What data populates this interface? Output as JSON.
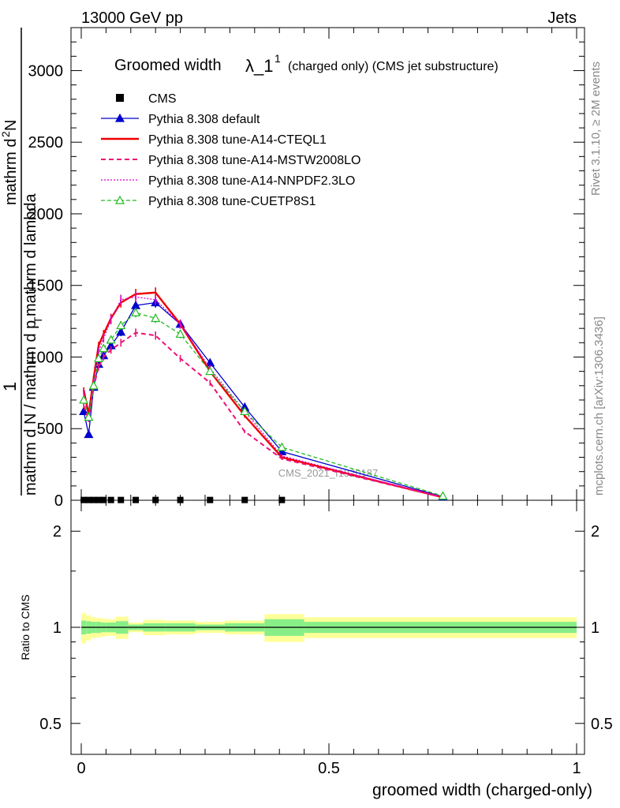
{
  "header": {
    "left": "13000 GeV pp",
    "right": "Jets"
  },
  "side_labels": {
    "rivet": "Rivet 3.1.10, ≥ 2M events",
    "mcplots": "mcplots.cern.ch [arXiv:1306.3436]"
  },
  "watermark": "CMS_2021_I1920187",
  "chart_data": [
    {
      "type": "line",
      "panel": "main",
      "title_main": "Groomed width",
      "title_lambda": "λ_1",
      "title_sup": "1",
      "title_rest": "(charged only) (CMS jet substructure)",
      "ylabel": {
        "prefix": "1",
        "top": "mathrm d",
        "sup": "2",
        "top_end": "N",
        "bottom": "mathrm d N / mathrm d p",
        "bottom_sub": "T",
        "bottom_end": " mathrm d lambda"
      },
      "xlim": [
        0,
        1
      ],
      "ylim": [
        0,
        3300
      ],
      "yticks": [
        0,
        500,
        1000,
        1500,
        2000,
        2500,
        3000
      ],
      "ytick_labels": [
        "0",
        "500",
        "1000",
        "1500",
        "2000",
        "2500",
        "3000"
      ],
      "data_points_x": [
        0.005,
        0.015,
        0.025,
        0.035,
        0.045,
        0.06,
        0.08,
        0.11,
        0.15,
        0.2,
        0.26,
        0.33,
        0.405,
        0.73
      ],
      "series": [
        {
          "name": "CMS",
          "style": "marker",
          "color": "#000000",
          "x": [
            0.005,
            0.015,
            0.025,
            0.035,
            0.045,
            0.06,
            0.08,
            0.11,
            0.15,
            0.2,
            0.26,
            0.33,
            0.405
          ],
          "y": [
            2,
            2,
            2,
            2,
            2,
            2,
            2,
            2,
            2,
            2,
            2,
            2,
            2
          ]
        },
        {
          "name": "Pythia 8.308 default",
          "style": "solid-triangle",
          "color": "#0000cc",
          "x": [
            0.005,
            0.015,
            0.025,
            0.035,
            0.045,
            0.06,
            0.08,
            0.11,
            0.15,
            0.2,
            0.26,
            0.33,
            0.405,
            0.73
          ],
          "y": [
            620,
            460,
            790,
            950,
            1010,
            1080,
            1175,
            1360,
            1380,
            1230,
            960,
            650,
            340,
            25
          ]
        },
        {
          "name": "Pythia 8.308 tune-A14-CTEQL1",
          "style": "thick-solid",
          "color": "#ee0000",
          "x": [
            0.005,
            0.015,
            0.025,
            0.035,
            0.045,
            0.06,
            0.08,
            0.11,
            0.15,
            0.2,
            0.26,
            0.33,
            0.405,
            0.73
          ],
          "y": [
            770,
            600,
            850,
            1080,
            1160,
            1270,
            1380,
            1440,
            1450,
            1230,
            900,
            590,
            300,
            20
          ]
        },
        {
          "name": "Pythia 8.308 tune-A14-MSTW2008LO",
          "style": "dashed",
          "color": "#ee1177",
          "x": [
            0.005,
            0.015,
            0.025,
            0.035,
            0.045,
            0.06,
            0.08,
            0.11,
            0.15,
            0.2,
            0.26,
            0.33,
            0.405,
            0.73
          ],
          "y": [
            660,
            560,
            790,
            930,
            1000,
            1050,
            1100,
            1170,
            1150,
            990,
            820,
            480,
            290,
            20
          ]
        },
        {
          "name": "Pythia 8.308 tune-A14-NNPDF2.3LO",
          "style": "dotted",
          "color": "#dd00cc",
          "x": [
            0.005,
            0.015,
            0.025,
            0.035,
            0.045,
            0.06,
            0.08,
            0.11,
            0.15,
            0.2,
            0.26,
            0.33,
            0.405,
            0.73
          ],
          "y": [
            750,
            560,
            830,
            1040,
            1130,
            1260,
            1400,
            1420,
            1400,
            1230,
            920,
            620,
            310,
            20
          ]
        },
        {
          "name": "Pythia 8.308 tune-CUETP8S1",
          "style": "dashed-open-triangle",
          "color": "#22bb22",
          "x": [
            0.005,
            0.015,
            0.025,
            0.035,
            0.045,
            0.06,
            0.08,
            0.11,
            0.15,
            0.2,
            0.26,
            0.33,
            0.405,
            0.73
          ],
          "y": [
            700,
            580,
            800,
            990,
            1060,
            1120,
            1220,
            1310,
            1270,
            1160,
            900,
            620,
            370,
            30
          ]
        }
      ]
    },
    {
      "type": "area",
      "panel": "ratio",
      "ylabel": "Ratio to CMS",
      "xlabel": "groomed width (charged-only)",
      "scale": "log",
      "ylim": [
        0.4,
        2.5
      ],
      "yticks": [
        0.5,
        1,
        2
      ],
      "ytick_labels": [
        "0.5",
        "1",
        "2"
      ],
      "xticks": [
        0,
        0.5,
        1
      ],
      "xtick_labels": [
        "0",
        "0.5",
        "1"
      ],
      "bins": [
        {
          "lo": 0.0,
          "hi": 0.01,
          "inner": 0.05,
          "outer": 0.11
        },
        {
          "lo": 0.01,
          "hi": 0.02,
          "inner": 0.045,
          "outer": 0.09
        },
        {
          "lo": 0.02,
          "hi": 0.03,
          "inner": 0.04,
          "outer": 0.075
        },
        {
          "lo": 0.03,
          "hi": 0.04,
          "inner": 0.04,
          "outer": 0.07
        },
        {
          "lo": 0.04,
          "hi": 0.05,
          "inner": 0.035,
          "outer": 0.065
        },
        {
          "lo": 0.05,
          "hi": 0.07,
          "inner": 0.035,
          "outer": 0.06
        },
        {
          "lo": 0.07,
          "hi": 0.095,
          "inner": 0.045,
          "outer": 0.08
        },
        {
          "lo": 0.095,
          "hi": 0.125,
          "inner": 0.02,
          "outer": 0.035
        },
        {
          "lo": 0.125,
          "hi": 0.17,
          "inner": 0.03,
          "outer": 0.055
        },
        {
          "lo": 0.17,
          "hi": 0.23,
          "inner": 0.03,
          "outer": 0.05
        },
        {
          "lo": 0.23,
          "hi": 0.29,
          "inner": 0.02,
          "outer": 0.04
        },
        {
          "lo": 0.29,
          "hi": 0.37,
          "inner": 0.03,
          "outer": 0.05
        },
        {
          "lo": 0.37,
          "hi": 0.45,
          "inner": 0.06,
          "outer": 0.1
        },
        {
          "lo": 0.45,
          "hi": 1.0,
          "inner": 0.04,
          "outer": 0.075
        }
      ],
      "band_colors": {
        "inner": "#88ee88",
        "outer": "#ffff99"
      }
    }
  ]
}
